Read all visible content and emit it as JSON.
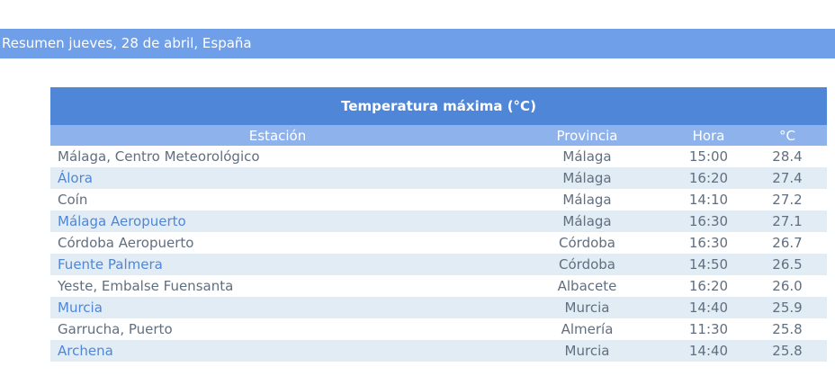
{
  "summary": {
    "title": "Resumen jueves, 28 de abril, España"
  },
  "table": {
    "title": "Temperatura máxima (°C)",
    "headers": {
      "station": "Estación",
      "province": "Provincia",
      "hour": "Hora",
      "temp": "°C"
    },
    "rows": [
      {
        "station": "Málaga, Centro Meteorológico",
        "province": "Málaga",
        "hour": "15:00",
        "temp": "28.4"
      },
      {
        "station": "Álora",
        "province": "Málaga",
        "hour": "16:20",
        "temp": "27.4"
      },
      {
        "station": "Coín",
        "province": "Málaga",
        "hour": "14:10",
        "temp": "27.2"
      },
      {
        "station": "Málaga Aeropuerto",
        "province": "Málaga",
        "hour": "16:30",
        "temp": "27.1"
      },
      {
        "station": "Córdoba Aeropuerto",
        "province": "Córdoba",
        "hour": "16:30",
        "temp": "26.7"
      },
      {
        "station": "Fuente Palmera",
        "province": "Córdoba",
        "hour": "14:50",
        "temp": "26.5"
      },
      {
        "station": "Yeste, Embalse Fuensanta",
        "province": "Albacete",
        "hour": "16:20",
        "temp": "26.0"
      },
      {
        "station": "Murcia",
        "province": "Murcia",
        "hour": "14:40",
        "temp": "25.9"
      },
      {
        "station": "Garrucha, Puerto",
        "province": "Almería",
        "hour": "11:30",
        "temp": "25.8"
      },
      {
        "station": "Archena",
        "province": "Murcia",
        "hour": "14:40",
        "temp": "25.8"
      }
    ]
  },
  "colors": {
    "summary_bar": "#6f9fe8",
    "title_bar": "#4f86d8",
    "header_bar": "#8db2ec",
    "row_stripe": "#e2ecf5",
    "link_text": "#4f86d8",
    "plain_text": "#606f7f"
  }
}
